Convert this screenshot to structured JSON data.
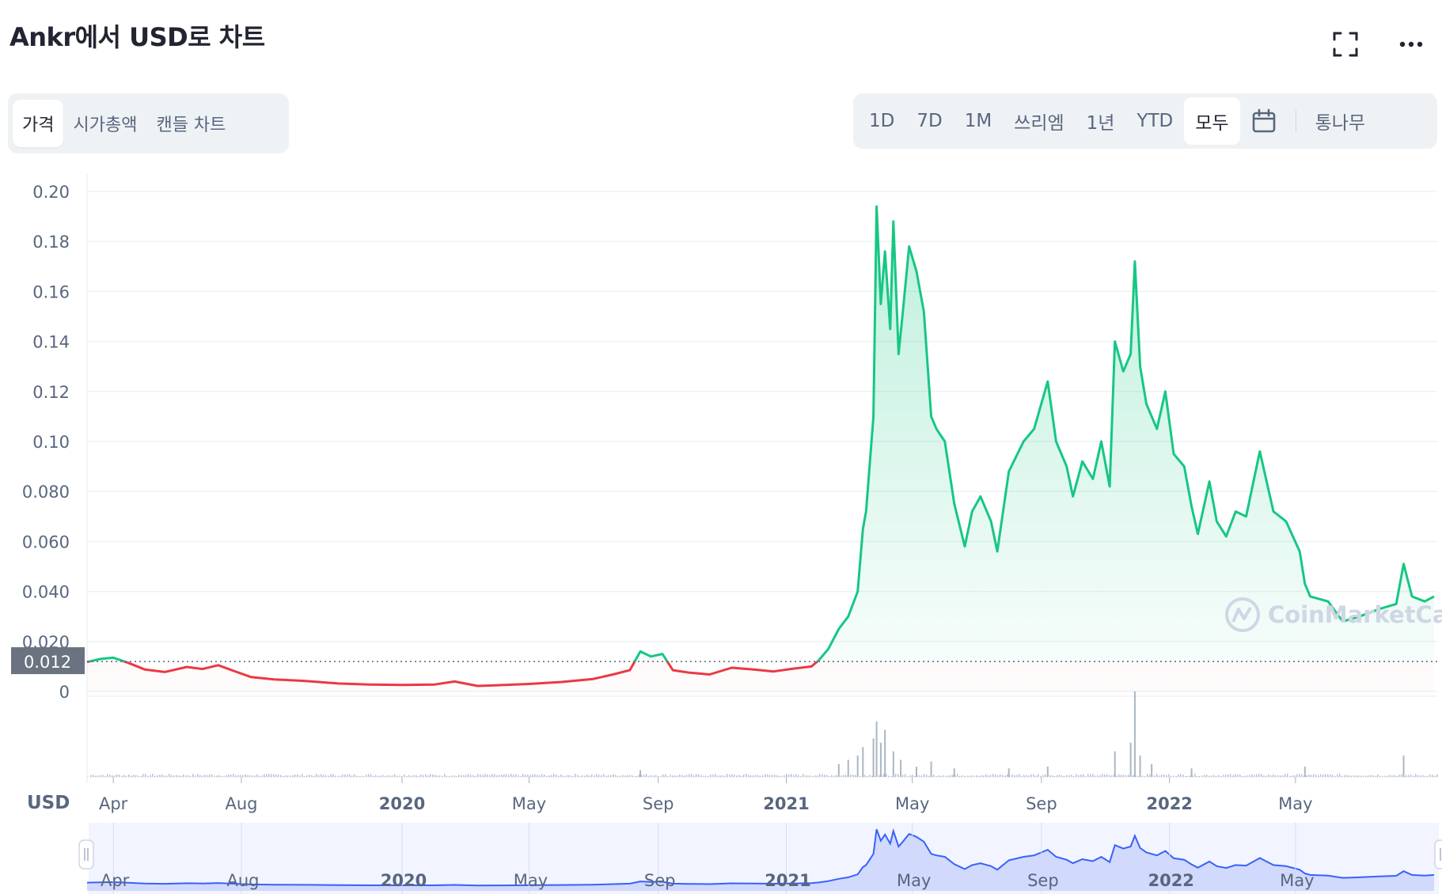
{
  "header": {
    "title": "Ankr에서 USD로 차트",
    "icons": [
      "fullscreen-icon",
      "more-icon"
    ]
  },
  "chart_tabs": [
    {
      "label": "가격",
      "active": true
    },
    {
      "label": "시가총액",
      "active": false
    },
    {
      "label": "캔들 차트",
      "active": false
    }
  ],
  "range_tabs": [
    {
      "label": "1D",
      "active": false
    },
    {
      "label": "7D",
      "active": false
    },
    {
      "label": "1M",
      "active": false
    },
    {
      "label": "쓰리엠",
      "active": false
    },
    {
      "label": "1년",
      "active": false
    },
    {
      "label": "YTD",
      "active": false
    },
    {
      "label": "모두",
      "active": true
    }
  ],
  "range_extra": {
    "calendar_icon": "calendar-icon",
    "log_label": "통나무"
  },
  "watermark": "CoinMarketCap",
  "colors": {
    "up": "#16c784",
    "down": "#ea3943",
    "nav": "#3861fb",
    "grid": "#eff2f5",
    "axis": "#58667e"
  },
  "chart_data": {
    "type": "line",
    "title": "Ankr에서 USD로 차트",
    "currency_label": "USD",
    "y_ticks": [
      "0.20",
      "0.18",
      "0.16",
      "0.14",
      "0.12",
      "0.10",
      "0.080",
      "0.060",
      "0.040",
      "0.020",
      "0"
    ],
    "ylim": [
      0,
      0.2
    ],
    "reference_price": 0.012,
    "reference_label": "0.012",
    "x_range": [
      "2019-03-07",
      "2022-09-10"
    ],
    "x_ticks": [
      {
        "date": "2019-04-01",
        "label": "Apr",
        "bold": false
      },
      {
        "date": "2019-08-01",
        "label": "Aug",
        "bold": false
      },
      {
        "date": "2020-01-01",
        "label": "2020",
        "bold": true
      },
      {
        "date": "2020-05-01",
        "label": "May",
        "bold": false
      },
      {
        "date": "2020-09-01",
        "label": "Sep",
        "bold": false
      },
      {
        "date": "2021-01-01",
        "label": "2021",
        "bold": true
      },
      {
        "date": "2021-05-01",
        "label": "May",
        "bold": false
      },
      {
        "date": "2021-09-01",
        "label": "Sep",
        "bold": false
      },
      {
        "date": "2022-01-01",
        "label": "2022",
        "bold": true
      },
      {
        "date": "2022-05-01",
        "label": "May",
        "bold": false
      }
    ],
    "series": [
      {
        "values": [
          [
            "2019-03-07",
            0.0118
          ],
          [
            "2019-03-20",
            0.013
          ],
          [
            "2019-04-01",
            0.0135
          ],
          [
            "2019-04-15",
            0.0115
          ],
          [
            "2019-05-01",
            0.0088
          ],
          [
            "2019-05-20",
            0.0078
          ],
          [
            "2019-06-10",
            0.0098
          ],
          [
            "2019-06-25",
            0.009
          ],
          [
            "2019-07-10",
            0.0105
          ],
          [
            "2019-07-25",
            0.0082
          ],
          [
            "2019-08-10",
            0.0058
          ],
          [
            "2019-09-01",
            0.0048
          ],
          [
            "2019-10-01",
            0.0042
          ],
          [
            "2019-11-01",
            0.0032
          ],
          [
            "2019-12-01",
            0.0028
          ],
          [
            "2020-01-01",
            0.0026
          ],
          [
            "2020-02-01",
            0.0028
          ],
          [
            "2020-02-20",
            0.004
          ],
          [
            "2020-03-13",
            0.0022
          ],
          [
            "2020-04-01",
            0.0025
          ],
          [
            "2020-05-01",
            0.003
          ],
          [
            "2020-06-01",
            0.0038
          ],
          [
            "2020-07-01",
            0.005
          ],
          [
            "2020-07-20",
            0.0068
          ],
          [
            "2020-08-05",
            0.0085
          ],
          [
            "2020-08-15",
            0.016
          ],
          [
            "2020-08-25",
            0.014
          ],
          [
            "2020-09-05",
            0.015
          ],
          [
            "2020-09-15",
            0.0085
          ],
          [
            "2020-10-01",
            0.0075
          ],
          [
            "2020-10-20",
            0.0068
          ],
          [
            "2020-11-10",
            0.0095
          ],
          [
            "2020-12-01",
            0.0088
          ],
          [
            "2020-12-20",
            0.008
          ],
          [
            "2021-01-05",
            0.009
          ],
          [
            "2021-01-25",
            0.01
          ],
          [
            "2021-02-01",
            0.0125
          ],
          [
            "2021-02-10",
            0.017
          ],
          [
            "2021-02-20",
            0.025
          ],
          [
            "2021-03-01",
            0.03
          ],
          [
            "2021-03-10",
            0.04
          ],
          [
            "2021-03-15",
            0.065
          ],
          [
            "2021-03-18",
            0.072
          ],
          [
            "2021-03-25",
            0.11
          ],
          [
            "2021-03-28",
            0.194
          ],
          [
            "2021-04-01",
            0.155
          ],
          [
            "2021-04-05",
            0.176
          ],
          [
            "2021-04-10",
            0.145
          ],
          [
            "2021-04-13",
            0.188
          ],
          [
            "2021-04-18",
            0.135
          ],
          [
            "2021-04-22",
            0.152
          ],
          [
            "2021-04-28",
            0.178
          ],
          [
            "2021-05-05",
            0.168
          ],
          [
            "2021-05-12",
            0.152
          ],
          [
            "2021-05-19",
            0.11
          ],
          [
            "2021-05-24",
            0.105
          ],
          [
            "2021-06-01",
            0.1
          ],
          [
            "2021-06-10",
            0.075
          ],
          [
            "2021-06-20",
            0.058
          ],
          [
            "2021-06-27",
            0.072
          ],
          [
            "2021-07-05",
            0.078
          ],
          [
            "2021-07-15",
            0.068
          ],
          [
            "2021-07-21",
            0.056
          ],
          [
            "2021-08-01",
            0.088
          ],
          [
            "2021-08-15",
            0.1
          ],
          [
            "2021-08-25",
            0.105
          ],
          [
            "2021-09-07",
            0.124
          ],
          [
            "2021-09-15",
            0.1
          ],
          [
            "2021-09-25",
            0.09
          ],
          [
            "2021-10-01",
            0.078
          ],
          [
            "2021-10-10",
            0.092
          ],
          [
            "2021-10-20",
            0.085
          ],
          [
            "2021-10-28",
            0.1
          ],
          [
            "2021-11-05",
            0.082
          ],
          [
            "2021-11-10",
            0.14
          ],
          [
            "2021-11-18",
            0.128
          ],
          [
            "2021-11-25",
            0.135
          ],
          [
            "2021-11-29",
            0.172
          ],
          [
            "2021-12-04",
            0.13
          ],
          [
            "2021-12-10",
            0.115
          ],
          [
            "2021-12-20",
            0.105
          ],
          [
            "2021-12-28",
            0.12
          ],
          [
            "2022-01-05",
            0.095
          ],
          [
            "2022-01-15",
            0.09
          ],
          [
            "2022-01-22",
            0.074
          ],
          [
            "2022-01-28",
            0.063
          ],
          [
            "2022-02-08",
            0.084
          ],
          [
            "2022-02-15",
            0.068
          ],
          [
            "2022-02-24",
            0.062
          ],
          [
            "2022-03-05",
            0.072
          ],
          [
            "2022-03-15",
            0.07
          ],
          [
            "2022-03-28",
            0.096
          ],
          [
            "2022-04-10",
            0.072
          ],
          [
            "2022-04-22",
            0.068
          ],
          [
            "2022-05-05",
            0.056
          ],
          [
            "2022-05-10",
            0.043
          ],
          [
            "2022-05-15",
            0.038
          ],
          [
            "2022-06-01",
            0.036
          ],
          [
            "2022-06-15",
            0.028
          ],
          [
            "2022-07-01",
            0.03
          ],
          [
            "2022-07-20",
            0.033
          ],
          [
            "2022-08-05",
            0.035
          ],
          [
            "2022-08-12",
            0.051
          ],
          [
            "2022-08-20",
            0.038
          ],
          [
            "2022-09-01",
            0.036
          ],
          [
            "2022-09-10",
            0.038
          ]
        ]
      }
    ],
    "volume": [
      [
        "2020-08-15",
        0.08
      ],
      [
        "2021-02-20",
        0.15
      ],
      [
        "2021-03-01",
        0.2
      ],
      [
        "2021-03-10",
        0.25
      ],
      [
        "2021-03-15",
        0.35
      ],
      [
        "2021-03-25",
        0.45
      ],
      [
        "2021-03-28",
        0.65
      ],
      [
        "2021-04-01",
        0.4
      ],
      [
        "2021-04-05",
        0.55
      ],
      [
        "2021-04-13",
        0.3
      ],
      [
        "2021-04-20",
        0.2
      ],
      [
        "2021-05-05",
        0.12
      ],
      [
        "2021-05-19",
        0.18
      ],
      [
        "2021-06-10",
        0.1
      ],
      [
        "2021-08-01",
        0.1
      ],
      [
        "2021-09-07",
        0.12
      ],
      [
        "2021-11-10",
        0.3
      ],
      [
        "2021-11-25",
        0.4
      ],
      [
        "2021-11-29",
        1.0
      ],
      [
        "2021-12-04",
        0.25
      ],
      [
        "2021-12-15",
        0.15
      ],
      [
        "2022-01-22",
        0.1
      ],
      [
        "2022-05-10",
        0.12
      ],
      [
        "2022-08-12",
        0.25
      ]
    ]
  },
  "navigator": {
    "labels": [
      {
        "date": "2019-04-01",
        "label": "Apr",
        "bold": false
      },
      {
        "date": "2019-08-01",
        "label": "Aug",
        "bold": false
      },
      {
        "date": "2020-01-01",
        "label": "2020",
        "bold": true
      },
      {
        "date": "2020-05-01",
        "label": "May",
        "bold": false
      },
      {
        "date": "2020-09-01",
        "label": "Sep",
        "bold": false
      },
      {
        "date": "2021-01-01",
        "label": "2021",
        "bold": true
      },
      {
        "date": "2021-05-01",
        "label": "May",
        "bold": false
      },
      {
        "date": "2021-09-01",
        "label": "Sep",
        "bold": false
      },
      {
        "date": "2022-01-01",
        "label": "2022",
        "bold": true
      },
      {
        "date": "2022-05-01",
        "label": "May",
        "bold": false
      }
    ]
  }
}
